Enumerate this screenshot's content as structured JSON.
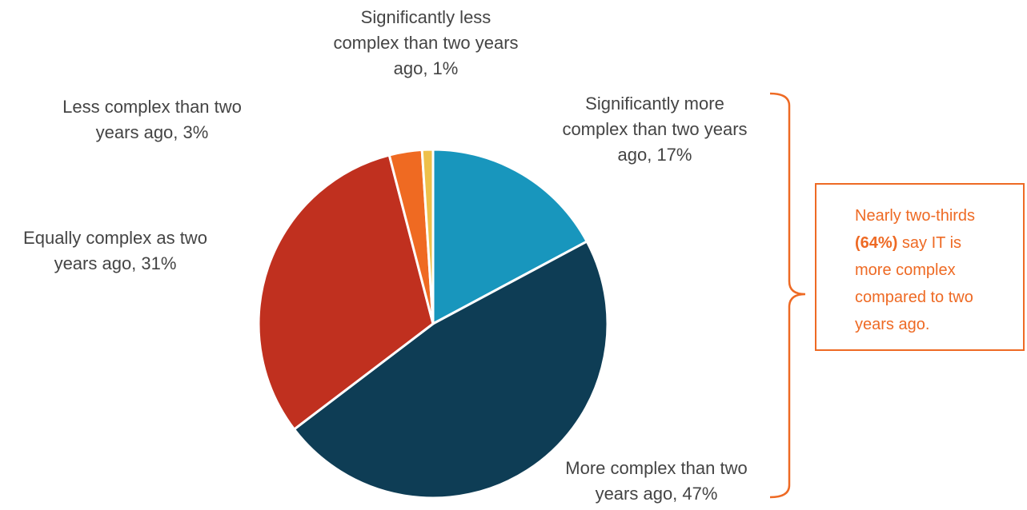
{
  "chart_data": {
    "type": "pie",
    "title": "",
    "slices": [
      {
        "label_line1": "Significantly more",
        "label_line2": "complex than two years",
        "label_line3": "ago, 17%",
        "value": 17,
        "color": "#1896bd"
      },
      {
        "label_line1": "More complex than two",
        "label_line2": "years ago, 47%",
        "value": 47,
        "color": "#0e3d55"
      },
      {
        "label_line1": "Equally complex as two",
        "label_line2": "years ago, 31%",
        "value": 31,
        "color": "#c0301f"
      },
      {
        "label_line1": "Less complex than two",
        "label_line2": "years ago, 3%",
        "value": 3,
        "color": "#ef6a22"
      },
      {
        "label_line1": "Significantly less",
        "label_line2": "complex than two years",
        "label_line3": "ago, 1%",
        "value": 1,
        "color": "#eec04a"
      }
    ],
    "start_angle": "12 o'clock",
    "direction": "clockwise"
  },
  "callout": {
    "line1": "Nearly two-thirds",
    "bold": "(64%)",
    "line2_rest": " say IT is",
    "line3": "more complex",
    "line4": "compared to two",
    "line5": "years ago.",
    "color": "#ee6a24",
    "bracket_color": "#ee6a24"
  }
}
